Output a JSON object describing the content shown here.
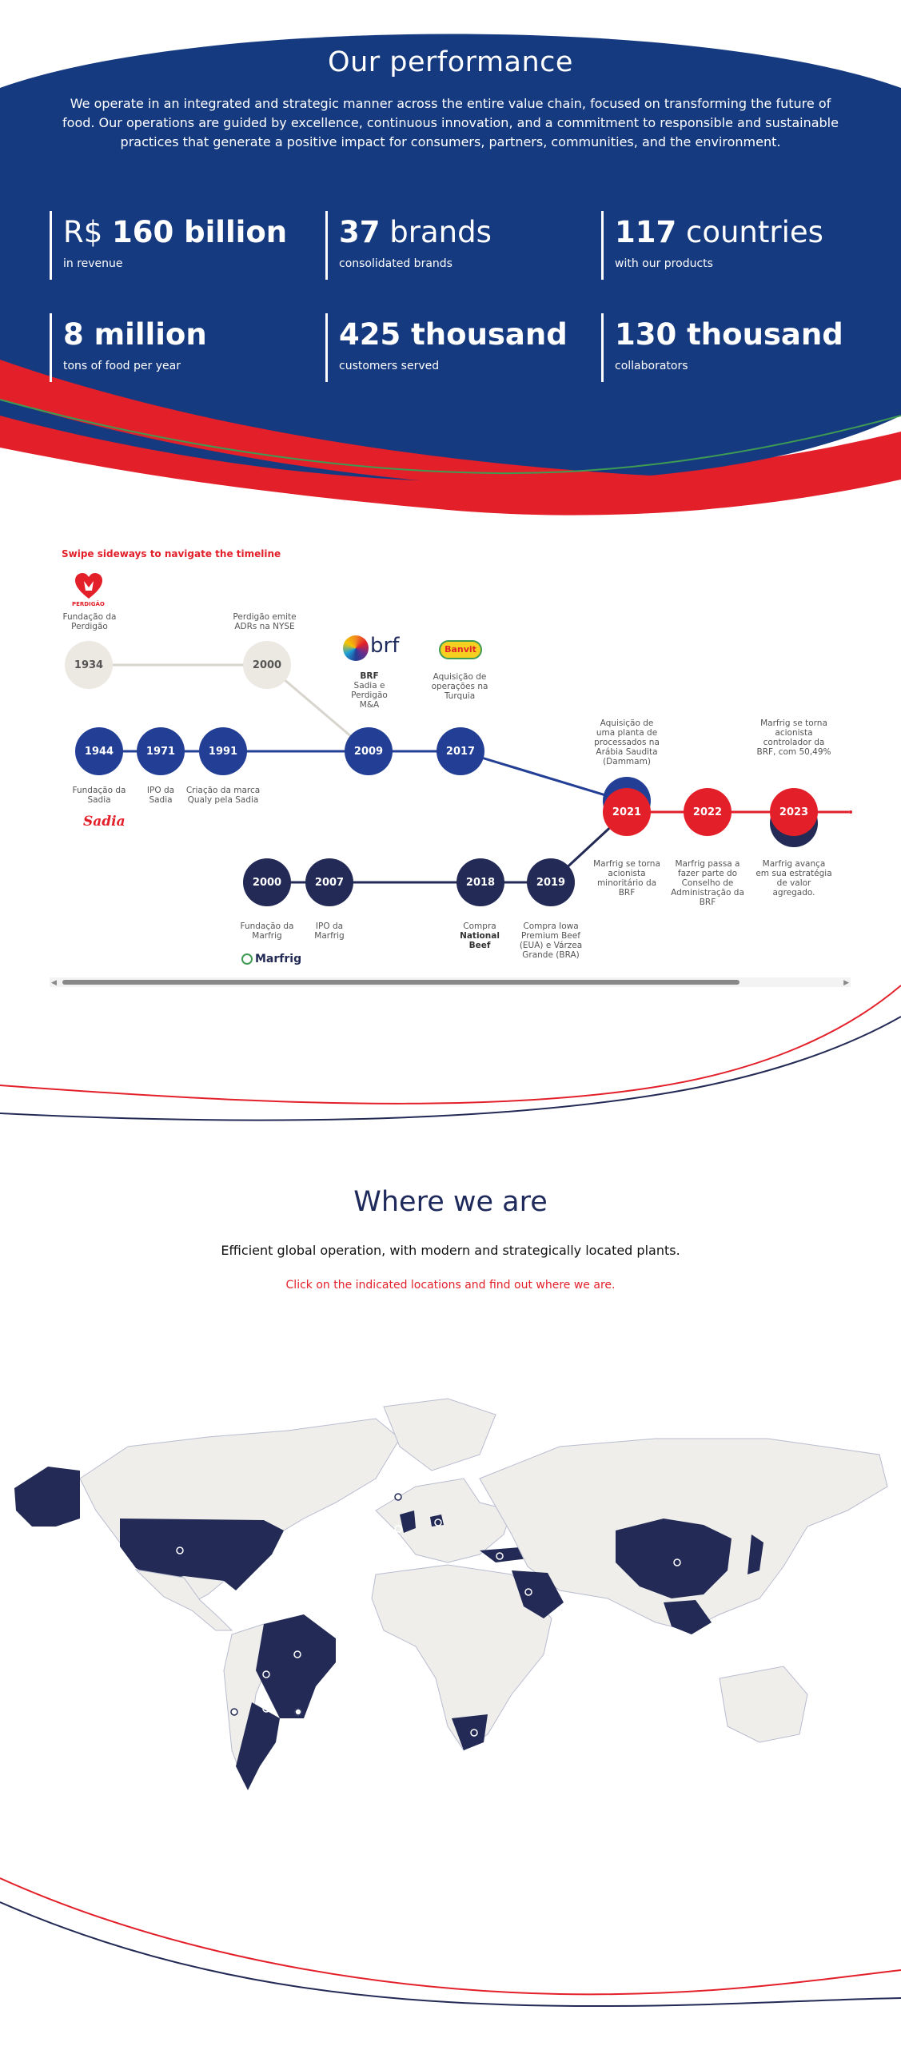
{
  "performance": {
    "title": "Our performance",
    "intro": "We operate in an integrated and strategic manner across the entire value chain, focused on transforming the future of food. Our operations are guided by excellence, continuous innovation, and a commitment to responsible and sustainable practices that generate a positive impact for consumers, partners, communities, and the environment.",
    "stats": [
      {
        "prefix": "R$ ",
        "value": "160 billion",
        "suffix": "",
        "label": "in revenue"
      },
      {
        "prefix": "",
        "value": "37",
        "suffix": " brands",
        "label": "consolidated brands"
      },
      {
        "prefix": "",
        "value": "117",
        "suffix": " countries",
        "label": "with our products"
      },
      {
        "prefix": "",
        "value": "8 million",
        "suffix": "",
        "label": "tons of food per year"
      },
      {
        "prefix": "",
        "value": "425 thousand",
        "suffix": "",
        "label": "customers served"
      },
      {
        "prefix": "",
        "value": "130 thousand",
        "suffix": "",
        "label": "collaborators"
      }
    ],
    "colors": {
      "blue": "#163a80",
      "red": "#e3202a",
      "green": "#3e9b54"
    }
  },
  "timeline": {
    "hint": "Swipe sideways to navigate the timeline",
    "nodes": [
      {
        "year": "1934",
        "style": "gray"
      },
      {
        "year": "2000",
        "style": "gray"
      },
      {
        "year": "1944",
        "style": "blue"
      },
      {
        "year": "1971",
        "style": "blue"
      },
      {
        "year": "1991",
        "style": "blue"
      },
      {
        "year": "2009",
        "style": "blue"
      },
      {
        "year": "2017",
        "style": "blue"
      },
      {
        "year": "2021",
        "style": "red"
      },
      {
        "year": "2022",
        "style": "red"
      },
      {
        "year": "2023",
        "style": "red"
      },
      {
        "year": "2000",
        "style": "navy"
      },
      {
        "year": "2007",
        "style": "navy"
      },
      {
        "year": "2018",
        "style": "navy"
      },
      {
        "year": "2019",
        "style": "navy"
      }
    ],
    "labels": {
      "l1934": "Fundação da Perdigão",
      "l2000a": "Perdigão emite ADRs na NYSE",
      "l2009_title": "BRF",
      "l2009": "Sadia e Perdigão M&A",
      "l2017": "Aquisição de operações na Turquia",
      "l1944": "Fundação da Sadia",
      "l1971": "IPO da Sadia",
      "l1991": "Criação da marca Qualy pela Sadia",
      "l2021_top": "Aquisição de uma planta de processados na Arábia Saudita (Dammam)",
      "l2023_top": "Marfrig se torna acionista controlador da BRF, com 50,49%",
      "l2021_bottom": "Marfrig se torna acionista minoritário da BRF",
      "l2022": "Marfrig passa a fazer parte do Conselho de Administração da BRF",
      "l2023_bottom": "Marfrig avança em sua estratégia de valor agregado.",
      "l2000b": "Fundação da Marfrig",
      "l2007": "IPO da Marfrig",
      "l2018_pre": "Compra",
      "l2018_bold": "National Beef",
      "l2019": "Compra Iowa Premium Beef (EUA) e Várzea Grande (BRA)"
    },
    "logos": {
      "perdigao": "PERDIGÃO",
      "brf": "brf",
      "banvit": "Banvit",
      "sadia": "Sadia",
      "marfrig": "Marfrig"
    },
    "scroll_position": 0.0,
    "colors": {
      "gray_line": "#d8d4ce",
      "blue": "#233f95",
      "navy": "#222a55",
      "red": "#e3202a"
    }
  },
  "where": {
    "title": "Where we are",
    "subtitle": "Efficient global operation, with modern and strategically located plants.",
    "cta": "Click on the indicated locations and find out where we are.",
    "colors": {
      "land": "#efeeeb",
      "highlight": "#222a55",
      "border": "#b8bccf"
    }
  }
}
